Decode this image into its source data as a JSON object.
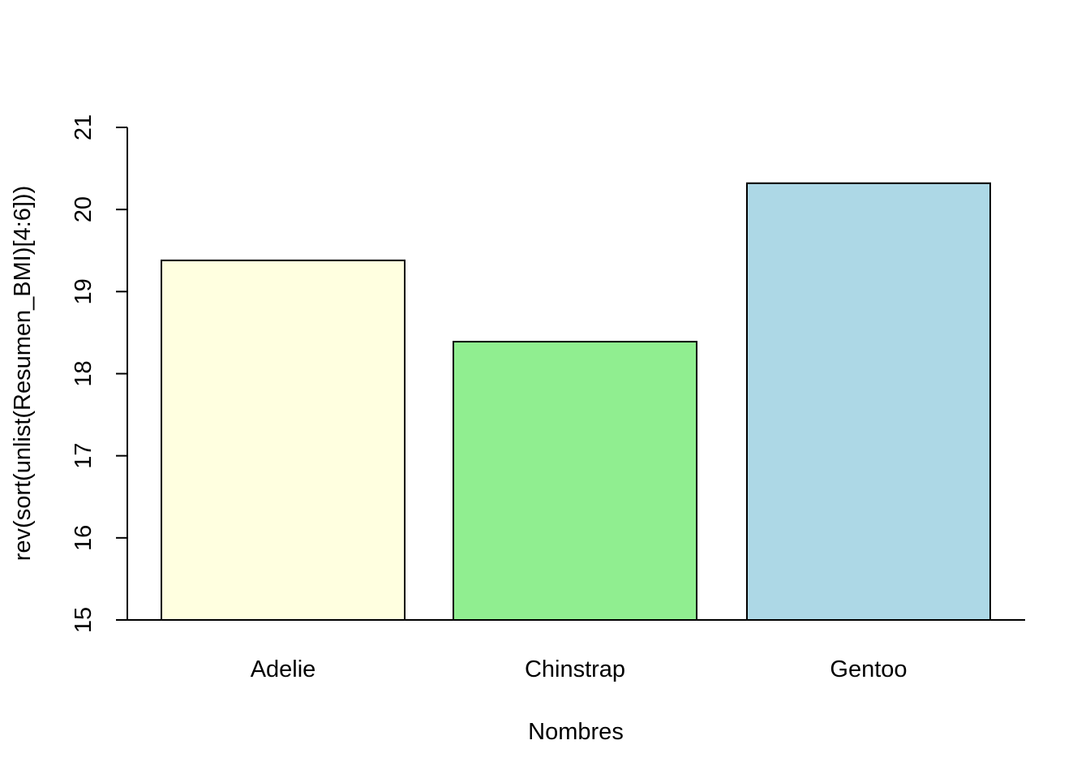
{
  "chart_data": {
    "type": "bar",
    "categories": [
      "Adelie",
      "Chinstrap",
      "Gentoo"
    ],
    "values": [
      19.38,
      18.39,
      20.32
    ],
    "colors": [
      "#FFFFE0",
      "#90EE90",
      "#ADD8E6"
    ],
    "bar_border_color": "#000000",
    "xlabel": "Nombres",
    "ylabel": "rev(sort(unlist(Resumen_BMI)[4:6]))",
    "ylim": [
      15,
      21
    ],
    "yticks": [
      15,
      16,
      17,
      18,
      19,
      20,
      21
    ],
    "ytick_labels": [
      "15",
      "16",
      "17",
      "18",
      "19",
      "20",
      "21"
    ],
    "ytick_orientation": "rotated",
    "grid": false,
    "legend": "none"
  }
}
